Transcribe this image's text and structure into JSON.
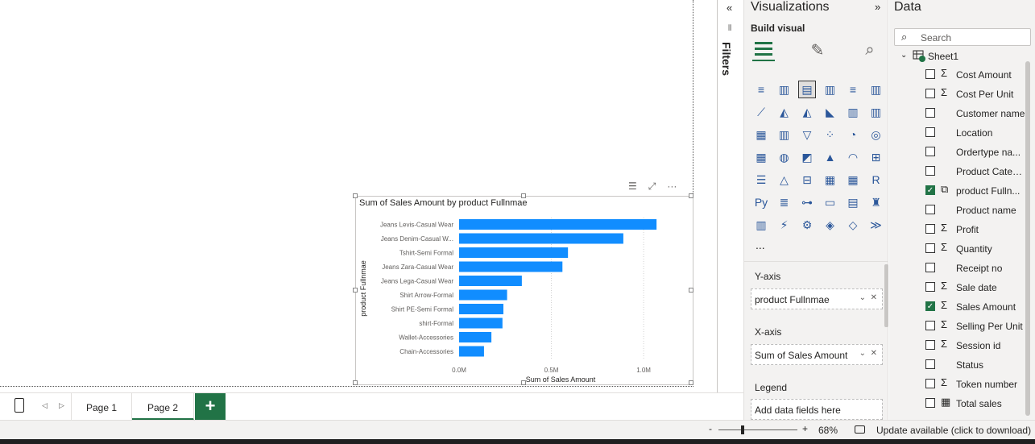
{
  "filters": {
    "label": "Filters",
    "collapse_icon": "double-chevron-left"
  },
  "visualizations": {
    "title": "Visualizations",
    "build_visual": "Build visual",
    "wells": [
      {
        "label": "Y-axis",
        "value": "product Fullnmae"
      },
      {
        "label": "X-axis",
        "value": "Sum of Sales Amount"
      },
      {
        "label": "Legend",
        "value": "Add data fields here"
      }
    ],
    "more": "..."
  },
  "data": {
    "title": "Data",
    "search_placeholder": "Search",
    "table": "Sheet1",
    "fields": [
      {
        "name": "Cost Amount",
        "sigma": true,
        "checked": false
      },
      {
        "name": "Cost Per Unit",
        "sigma": true,
        "checked": false
      },
      {
        "name": "Customer name",
        "sigma": false,
        "checked": false
      },
      {
        "name": "Location",
        "sigma": false,
        "checked": false
      },
      {
        "name": "Ordertype na...",
        "sigma": false,
        "checked": false
      },
      {
        "name": "Product Categ...",
        "sigma": false,
        "checked": false
      },
      {
        "name": "product Fulln...",
        "sigma": false,
        "checked": true,
        "hier": true
      },
      {
        "name": "Product name",
        "sigma": false,
        "checked": false
      },
      {
        "name": "Profit",
        "sigma": true,
        "checked": false
      },
      {
        "name": "Quantity",
        "sigma": true,
        "checked": false
      },
      {
        "name": "Receipt no",
        "sigma": false,
        "checked": false
      },
      {
        "name": "Sale date",
        "sigma": true,
        "checked": false
      },
      {
        "name": "Sales Amount",
        "sigma": true,
        "checked": true
      },
      {
        "name": "Selling Per Unit",
        "sigma": true,
        "checked": false
      },
      {
        "name": "Session id",
        "sigma": true,
        "checked": false
      },
      {
        "name": "Status",
        "sigma": false,
        "checked": false
      },
      {
        "name": "Token number",
        "sigma": true,
        "checked": false
      },
      {
        "name": "Total sales",
        "sigma": false,
        "checked": false,
        "calc": true
      }
    ]
  },
  "pages": {
    "tabs": [
      "Page 1",
      "Page 2"
    ],
    "active": "Page 2",
    "add": "+"
  },
  "status": {
    "zoom": "68%",
    "update": "Update available (click to download)",
    "minus": "-",
    "plus": "+"
  },
  "chart_data": {
    "type": "bar",
    "title": "Sum of Sales Amount by product Fullnmae",
    "xlabel": "Sum of Sales Amount",
    "ylabel": "product Fullnmae",
    "categories": [
      "Jeans Levis-Casual Wear",
      "Jeans Denim-Casual W...",
      "Tshirt-Semi Formal",
      "Jeans Zara-Casual Wear",
      "Jeans Lega-Casual Wear",
      "Shirt Arrow-Formal",
      "Shirt PE-Semi Formal",
      "shirt-Formal",
      "Wallet-Accessories",
      "Chain-Accessories"
    ],
    "values": [
      1070000,
      890000,
      590000,
      560000,
      340000,
      260000,
      240000,
      235000,
      175000,
      135000
    ],
    "xlim": [
      0,
      1100000
    ],
    "ticks": [
      "0.0M",
      "0.5M",
      "1.0M"
    ],
    "tick_values": [
      0,
      500000,
      1000000
    ],
    "color": "#118dff",
    "grid": true
  }
}
